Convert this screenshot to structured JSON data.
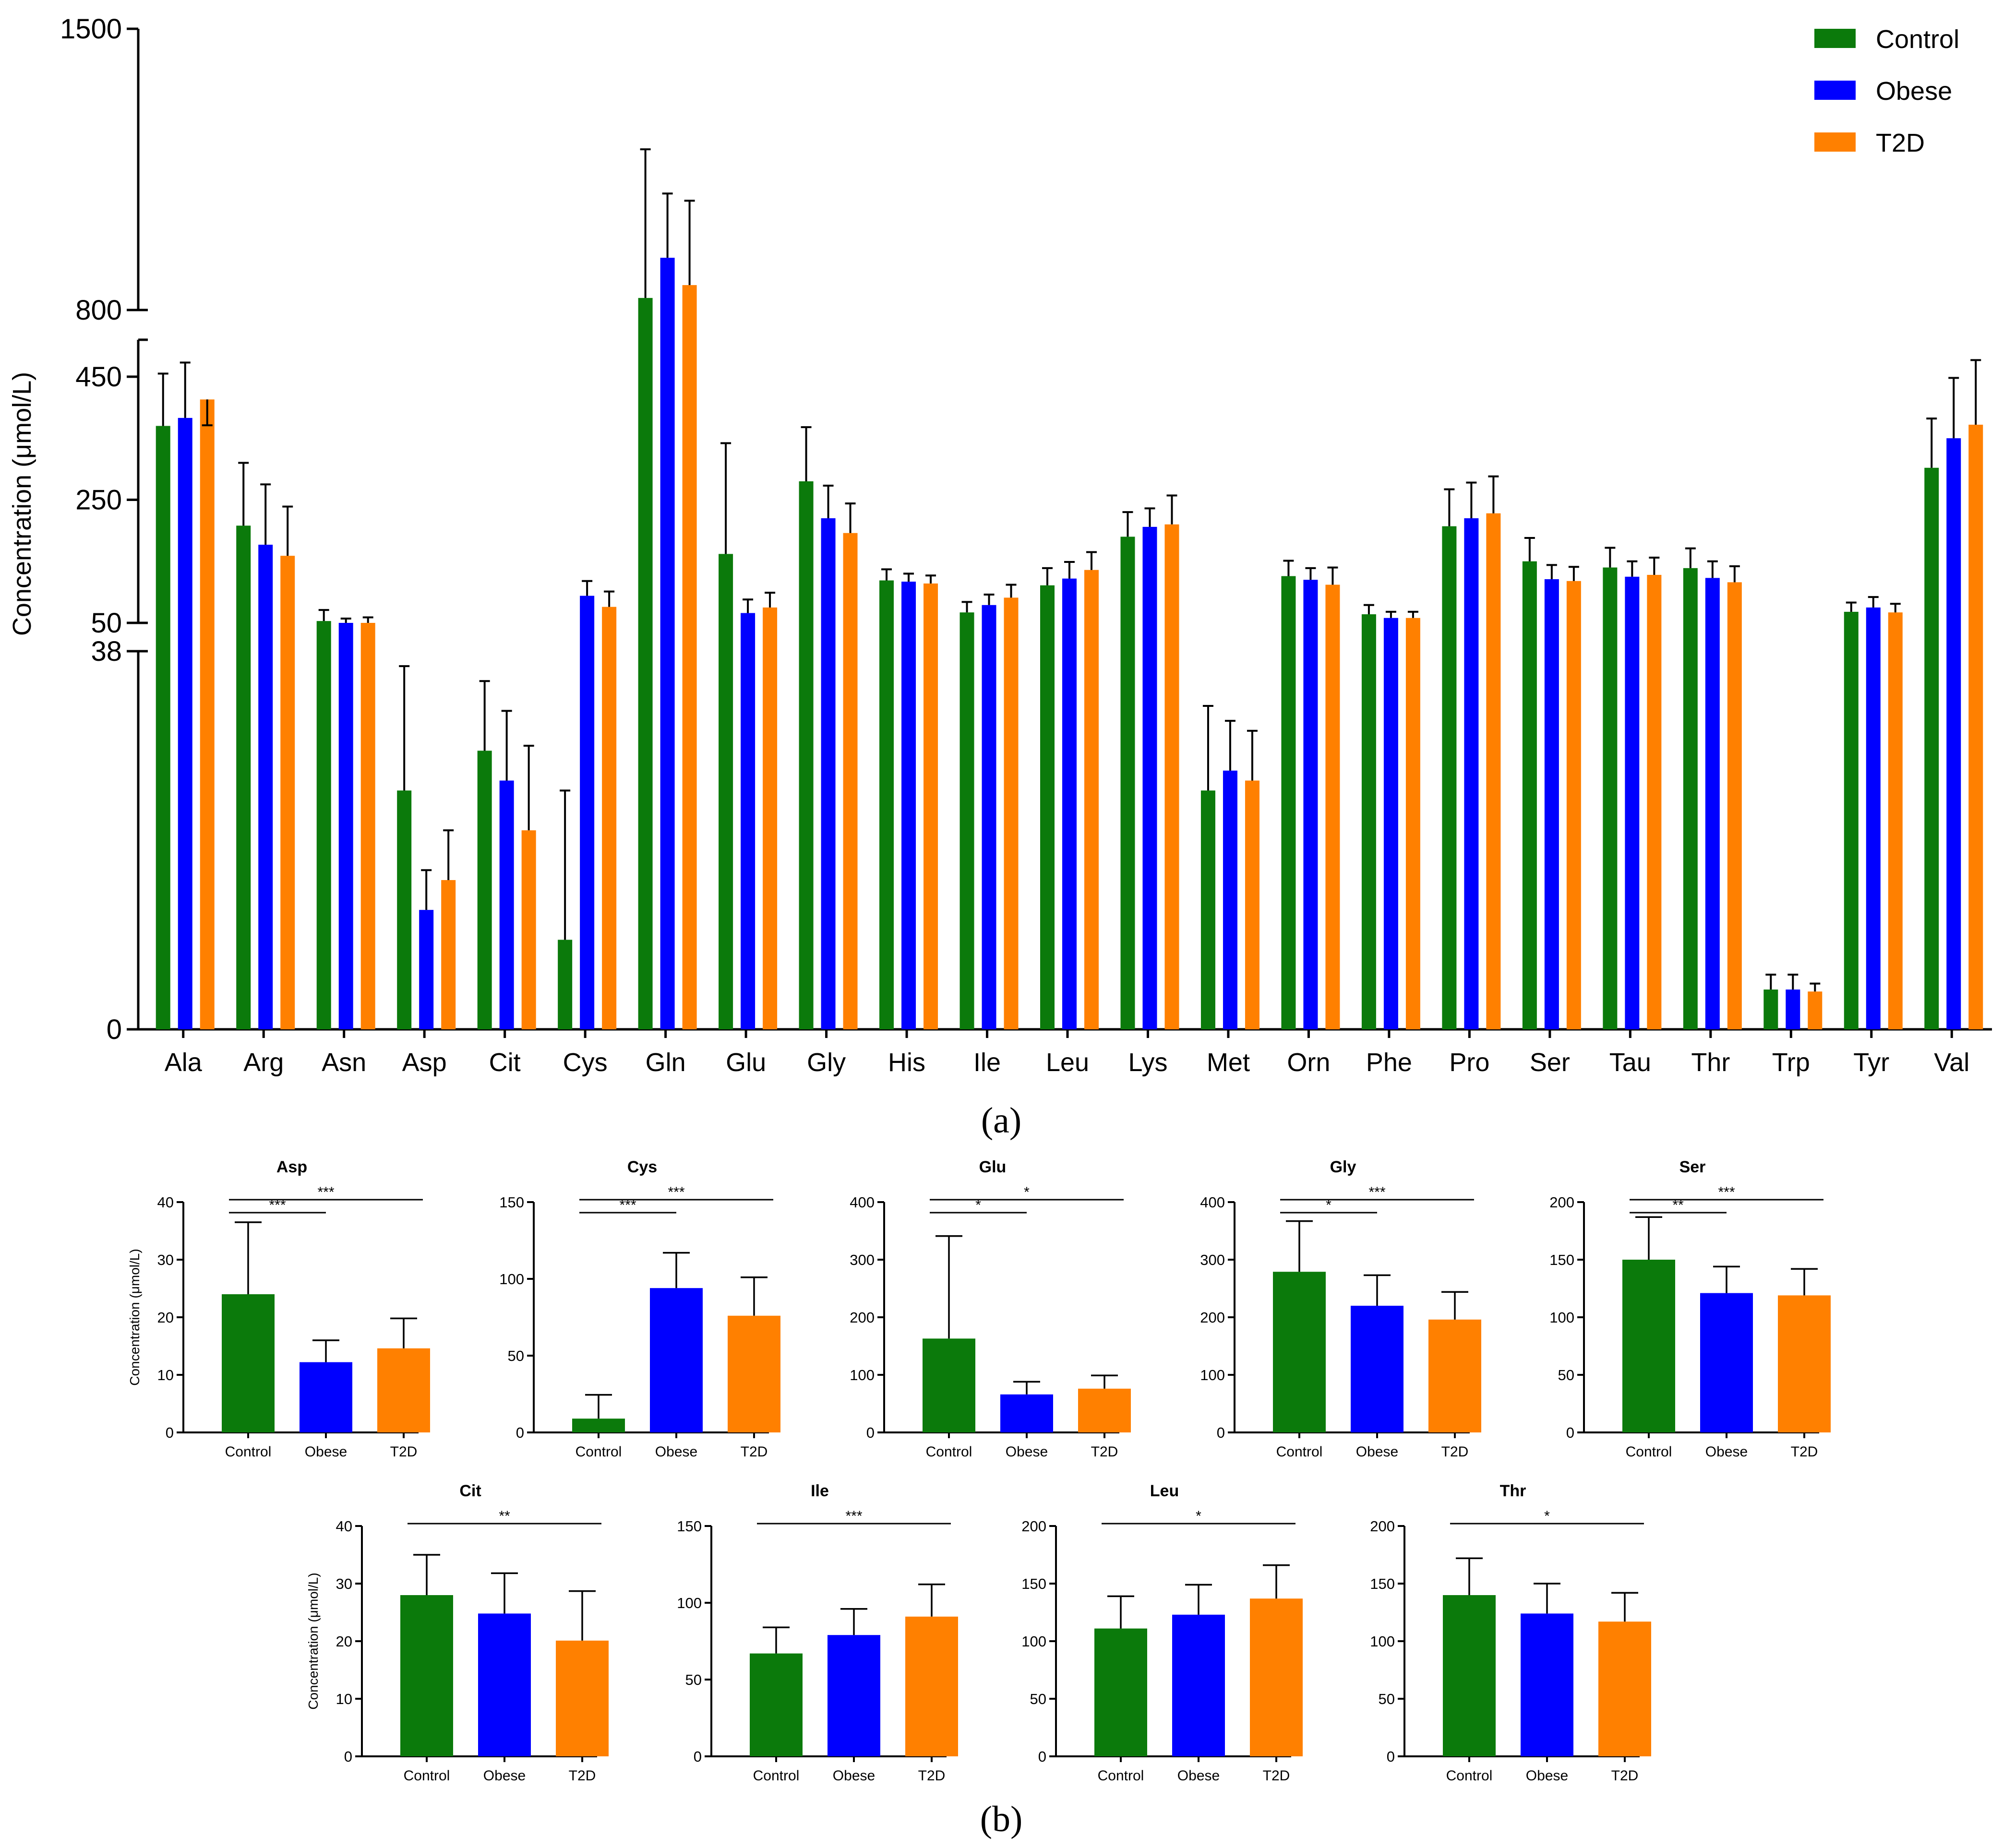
{
  "colors": {
    "Control": "#0b7a0b",
    "Obese": "#0000ff",
    "T2D": "#ff8000",
    "axis": "#000000"
  },
  "panel_labels": {
    "a": "(a)",
    "b": "(b)"
  },
  "chart_data": [
    {
      "id": "a",
      "type": "bar",
      "title": "",
      "xlabel": "",
      "ylabel": "Concentration (μmol/L)",
      "y_axis_breaks": [
        {
          "segment": "bottom",
          "ylim": [
            0,
            38
          ],
          "ticks": [
            0,
            38
          ]
        },
        {
          "segment": "middle",
          "ylim": [
            50,
            510
          ],
          "ticks": [
            50,
            250,
            450
          ]
        },
        {
          "segment": "top",
          "ylim": [
            800,
            1500
          ],
          "ticks": [
            800,
            1500
          ]
        }
      ],
      "legend": {
        "entries": [
          "Control",
          "Obese",
          "T2D"
        ],
        "placement": "top-right"
      },
      "categories": [
        "Ala",
        "Arg",
        "Asn",
        "Asp",
        "Cit",
        "Cys",
        "Gln",
        "Glu",
        "Gly",
        "His",
        "Ile",
        "Leu",
        "Lys",
        "Met",
        "Orn",
        "Phe",
        "Pro",
        "Ser",
        "Tau",
        "Thr",
        "Trp",
        "Tyr",
        "Val"
      ],
      "series": [
        {
          "name": "Control",
          "values": [
            370,
            208,
            53,
            24,
            28,
            9,
            830,
            162,
            280,
            119,
            67,
            111,
            190,
            24,
            126,
            64,
            207,
            150,
            140,
            139,
            4,
            68,
            302
          ],
          "errors": [
            85,
            102,
            18,
            12.5,
            7,
            15,
            370,
            180,
            88,
            18,
            17,
            28,
            40,
            8.5,
            25,
            15,
            60,
            38,
            32,
            32,
            1.5,
            15,
            80
          ]
        },
        {
          "name": "Obese",
          "values": [
            383,
            177,
            49,
            12,
            25,
            94,
            930,
            66,
            220,
            117,
            79,
            122,
            206,
            26,
            120,
            58,
            220,
            121,
            125,
            123,
            4,
            75,
            350
          ],
          "errors": [
            90,
            98,
            8,
            4,
            7,
            24,
            160,
            22,
            53,
            13,
            17,
            27,
            30,
            5,
            19,
            10,
            58,
            23,
            25,
            27,
            1.5,
            17,
            98
          ]
        },
        {
          "name": "T2D",
          "values": [
            413,
            159,
            50,
            15,
            20,
            76,
            862,
            75,
            196,
            114,
            91,
            136,
            210,
            25,
            112,
            58,
            228,
            118,
            128,
            116,
            3.8,
            67,
            372
          ],
          "errors": [
            100,
            80,
            9,
            5,
            8.5,
            25,
            210,
            24,
            48,
            13,
            21,
            29,
            47,
            5,
            28,
            10,
            60,
            23,
            28,
            26,
            0.8,
            14,
            105
          ]
        }
      ]
    },
    {
      "id": "b-asp",
      "type": "bar",
      "title": "Asp",
      "ylabel": "Concentration (μmol/L)",
      "categories": [
        "Control",
        "Obese",
        "T2D"
      ],
      "values": [
        24,
        12.2,
        14.6
      ],
      "errors": [
        12.5,
        3.8,
        5.2
      ],
      "ylim": [
        0,
        40
      ],
      "yticks": [
        0,
        10,
        20,
        30,
        40
      ],
      "significance": [
        {
          "pair": [
            0,
            1
          ],
          "label": "***"
        },
        {
          "pair": [
            0,
            2
          ],
          "label": "***"
        }
      ]
    },
    {
      "id": "b-cys",
      "type": "bar",
      "title": "Cys",
      "ylabel": "",
      "categories": [
        "Control",
        "Obese",
        "T2D"
      ],
      "values": [
        9,
        94,
        76
      ],
      "errors": [
        15.5,
        23,
        25
      ],
      "ylim": [
        0,
        150
      ],
      "yticks": [
        0,
        50,
        100,
        150
      ],
      "significance": [
        {
          "pair": [
            0,
            1
          ],
          "label": "***"
        },
        {
          "pair": [
            0,
            2
          ],
          "label": "***"
        }
      ]
    },
    {
      "id": "b-glu",
      "type": "bar",
      "title": "Glu",
      "ylabel": "",
      "categories": [
        "Control",
        "Obese",
        "T2D"
      ],
      "values": [
        163,
        66,
        76
      ],
      "errors": [
        178,
        22,
        23
      ],
      "ylim": [
        0,
        400
      ],
      "yticks": [
        0,
        100,
        200,
        300,
        400
      ],
      "significance": [
        {
          "pair": [
            0,
            1
          ],
          "label": "*"
        },
        {
          "pair": [
            0,
            2
          ],
          "label": "*"
        }
      ]
    },
    {
      "id": "b-gly",
      "type": "bar",
      "title": "Gly",
      "ylabel": "",
      "categories": [
        "Control",
        "Obese",
        "T2D"
      ],
      "values": [
        279,
        220,
        196
      ],
      "errors": [
        88,
        53,
        48
      ],
      "ylim": [
        0,
        400
      ],
      "yticks": [
        0,
        100,
        200,
        300,
        400
      ],
      "significance": [
        {
          "pair": [
            0,
            1
          ],
          "label": "*"
        },
        {
          "pair": [
            0,
            2
          ],
          "label": "***"
        }
      ]
    },
    {
      "id": "b-ser",
      "type": "bar",
      "title": "Ser",
      "ylabel": "",
      "categories": [
        "Control",
        "Obese",
        "T2D"
      ],
      "values": [
        150,
        121,
        119
      ],
      "errors": [
        37,
        23,
        23
      ],
      "ylim": [
        0,
        200
      ],
      "yticks": [
        0,
        50,
        100,
        150,
        200
      ],
      "significance": [
        {
          "pair": [
            0,
            1
          ],
          "label": "**"
        },
        {
          "pair": [
            0,
            2
          ],
          "label": "***"
        }
      ]
    },
    {
      "id": "b-cit",
      "type": "bar",
      "title": "Cit",
      "ylabel": "Concentration (μmol/L)",
      "categories": [
        "Control",
        "Obese",
        "T2D"
      ],
      "values": [
        28,
        24.8,
        20.1
      ],
      "errors": [
        7,
        7,
        8.6
      ],
      "ylim": [
        0,
        40
      ],
      "yticks": [
        0,
        10,
        20,
        30,
        40
      ],
      "significance": [
        {
          "pair": [
            0,
            2
          ],
          "label": "**"
        }
      ]
    },
    {
      "id": "b-ile",
      "type": "bar",
      "title": "Ile",
      "ylabel": "",
      "categories": [
        "Control",
        "Obese",
        "T2D"
      ],
      "values": [
        67,
        79,
        91
      ],
      "errors": [
        17,
        17,
        21
      ],
      "ylim": [
        0,
        150
      ],
      "yticks": [
        0,
        50,
        100,
        150
      ],
      "significance": [
        {
          "pair": [
            0,
            2
          ],
          "label": "***"
        }
      ]
    },
    {
      "id": "b-leu",
      "type": "bar",
      "title": "Leu",
      "ylabel": "",
      "categories": [
        "Control",
        "Obese",
        "T2D"
      ],
      "values": [
        111,
        123,
        137
      ],
      "errors": [
        28,
        26,
        29
      ],
      "ylim": [
        0,
        200
      ],
      "yticks": [
        0,
        50,
        100,
        150,
        200
      ],
      "significance": [
        {
          "pair": [
            0,
            2
          ],
          "label": "*"
        }
      ]
    },
    {
      "id": "b-thr",
      "type": "bar",
      "title": "Thr",
      "ylabel": "",
      "categories": [
        "Control",
        "Obese",
        "T2D"
      ],
      "values": [
        140,
        124,
        117
      ],
      "errors": [
        32,
        26,
        25
      ],
      "ylim": [
        0,
        200
      ],
      "yticks": [
        0,
        50,
        100,
        150,
        200
      ],
      "significance": [
        {
          "pair": [
            0,
            2
          ],
          "label": "*"
        }
      ]
    }
  ]
}
